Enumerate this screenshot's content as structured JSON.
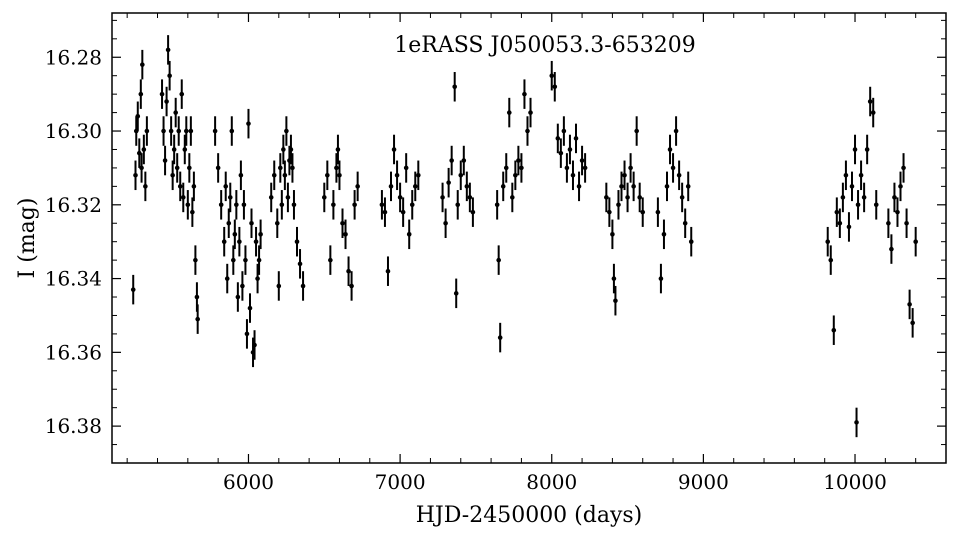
{
  "chart_data": {
    "type": "scatter",
    "title": "1eRASS J050053.3-653209",
    "xlabel": "HJD-2450000 (days)",
    "ylabel": "I (mag)",
    "xlim": [
      5100,
      10600
    ],
    "ylim": [
      16.39,
      16.268
    ],
    "y_inverted": true,
    "grid": false,
    "legend": "none",
    "marker_color": "#000000",
    "x_ticks": [
      6000,
      7000,
      8000,
      9000,
      10000
    ],
    "y_ticks": [
      16.28,
      16.3,
      16.32,
      16.34,
      16.36,
      16.38
    ],
    "x_tick_labels": [
      "6000",
      "7000",
      "8000",
      "9000",
      "10000"
    ],
    "y_tick_labels": [
      "16.28",
      "16.30",
      "16.32",
      "16.34",
      "16.36",
      "16.38"
    ],
    "error_bar_mag": 0.004,
    "points": [
      [
        5240,
        16.343
      ],
      [
        5255,
        16.312
      ],
      [
        5260,
        16.3
      ],
      [
        5270,
        16.296
      ],
      [
        5280,
        16.306
      ],
      [
        5290,
        16.29
      ],
      [
        5295,
        16.31
      ],
      [
        5300,
        16.282
      ],
      [
        5310,
        16.305
      ],
      [
        5320,
        16.315
      ],
      [
        5330,
        16.3
      ],
      [
        5430,
        16.29
      ],
      [
        5440,
        16.3
      ],
      [
        5450,
        16.308
      ],
      [
        5460,
        16.292
      ],
      [
        5470,
        16.278
      ],
      [
        5480,
        16.285
      ],
      [
        5490,
        16.3
      ],
      [
        5500,
        16.312
      ],
      [
        5510,
        16.305
      ],
      [
        5520,
        16.295
      ],
      [
        5530,
        16.31
      ],
      [
        5540,
        16.3
      ],
      [
        5550,
        16.315
      ],
      [
        5560,
        16.29
      ],
      [
        5570,
        16.318
      ],
      [
        5580,
        16.305
      ],
      [
        5590,
        16.3
      ],
      [
        5600,
        16.32
      ],
      [
        5610,
        16.31
      ],
      [
        5620,
        16.3
      ],
      [
        5630,
        16.322
      ],
      [
        5640,
        16.315
      ],
      [
        5650,
        16.335
      ],
      [
        5660,
        16.345
      ],
      [
        5665,
        16.351
      ],
      [
        5780,
        16.3
      ],
      [
        5800,
        16.31
      ],
      [
        5820,
        16.32
      ],
      [
        5840,
        16.33
      ],
      [
        5850,
        16.315
      ],
      [
        5860,
        16.34
      ],
      [
        5870,
        16.325
      ],
      [
        5880,
        16.318
      ],
      [
        5890,
        16.3
      ],
      [
        5900,
        16.335
      ],
      [
        5910,
        16.328
      ],
      [
        5920,
        16.32
      ],
      [
        5930,
        16.345
      ],
      [
        5940,
        16.33
      ],
      [
        5950,
        16.312
      ],
      [
        5960,
        16.342
      ],
      [
        5970,
        16.32
      ],
      [
        5980,
        16.335
      ],
      [
        5990,
        16.355
      ],
      [
        6000,
        16.298
      ],
      [
        6010,
        16.348
      ],
      [
        6020,
        16.325
      ],
      [
        6030,
        16.36
      ],
      [
        6040,
        16.358
      ],
      [
        6050,
        16.33
      ],
      [
        6060,
        16.34
      ],
      [
        6070,
        16.335
      ],
      [
        6080,
        16.328
      ],
      [
        6150,
        16.318
      ],
      [
        6170,
        16.312
      ],
      [
        6190,
        16.325
      ],
      [
        6200,
        16.342
      ],
      [
        6210,
        16.31
      ],
      [
        6220,
        16.32
      ],
      [
        6230,
        16.305
      ],
      [
        6240,
        16.312
      ],
      [
        6250,
        16.3
      ],
      [
        6260,
        16.318
      ],
      [
        6270,
        16.308
      ],
      [
        6280,
        16.305
      ],
      [
        6290,
        16.31
      ],
      [
        6300,
        16.32
      ],
      [
        6320,
        16.33
      ],
      [
        6340,
        16.336
      ],
      [
        6360,
        16.342
      ],
      [
        6500,
        16.318
      ],
      [
        6520,
        16.312
      ],
      [
        6540,
        16.335
      ],
      [
        6560,
        16.32
      ],
      [
        6580,
        16.31
      ],
      [
        6590,
        16.305
      ],
      [
        6600,
        16.312
      ],
      [
        6620,
        16.325
      ],
      [
        6640,
        16.328
      ],
      [
        6660,
        16.338
      ],
      [
        6680,
        16.342
      ],
      [
        6700,
        16.32
      ],
      [
        6720,
        16.315
      ],
      [
        6880,
        16.32
      ],
      [
        6900,
        16.322
      ],
      [
        6920,
        16.338
      ],
      [
        6940,
        16.315
      ],
      [
        6960,
        16.305
      ],
      [
        6980,
        16.312
      ],
      [
        7000,
        16.318
      ],
      [
        7020,
        16.322
      ],
      [
        7040,
        16.31
      ],
      [
        7060,
        16.328
      ],
      [
        7080,
        16.32
      ],
      [
        7100,
        16.315
      ],
      [
        7120,
        16.312
      ],
      [
        7280,
        16.318
      ],
      [
        7300,
        16.325
      ],
      [
        7320,
        16.314
      ],
      [
        7340,
        16.308
      ],
      [
        7360,
        16.288
      ],
      [
        7370,
        16.344
      ],
      [
        7380,
        16.32
      ],
      [
        7400,
        16.312
      ],
      [
        7420,
        16.308
      ],
      [
        7440,
        16.315
      ],
      [
        7460,
        16.318
      ],
      [
        7480,
        16.322
      ],
      [
        7640,
        16.32
      ],
      [
        7650,
        16.335
      ],
      [
        7660,
        16.356
      ],
      [
        7680,
        16.315
      ],
      [
        7700,
        16.31
      ],
      [
        7720,
        16.295
      ],
      [
        7740,
        16.318
      ],
      [
        7760,
        16.312
      ],
      [
        7780,
        16.308
      ],
      [
        7800,
        16.31
      ],
      [
        7820,
        16.29
      ],
      [
        7840,
        16.3
      ],
      [
        7860,
        16.295
      ],
      [
        8000,
        16.285
      ],
      [
        8020,
        16.288
      ],
      [
        8040,
        16.302
      ],
      [
        8060,
        16.306
      ],
      [
        8080,
        16.3
      ],
      [
        8100,
        16.31
      ],
      [
        8120,
        16.305
      ],
      [
        8140,
        16.312
      ],
      [
        8160,
        16.302
      ],
      [
        8180,
        16.315
      ],
      [
        8200,
        16.308
      ],
      [
        8220,
        16.31
      ],
      [
        8360,
        16.318
      ],
      [
        8380,
        16.322
      ],
      [
        8400,
        16.328
      ],
      [
        8410,
        16.34
      ],
      [
        8420,
        16.346
      ],
      [
        8440,
        16.32
      ],
      [
        8460,
        16.315
      ],
      [
        8480,
        16.312
      ],
      [
        8500,
        16.318
      ],
      [
        8520,
        16.31
      ],
      [
        8540,
        16.315
      ],
      [
        8560,
        16.3
      ],
      [
        8580,
        16.318
      ],
      [
        8600,
        16.322
      ],
      [
        8700,
        16.322
      ],
      [
        8720,
        16.34
      ],
      [
        8740,
        16.328
      ],
      [
        8760,
        16.315
      ],
      [
        8780,
        16.305
      ],
      [
        8800,
        16.31
      ],
      [
        8820,
        16.3
      ],
      [
        8840,
        16.312
      ],
      [
        8860,
        16.318
      ],
      [
        8880,
        16.325
      ],
      [
        8900,
        16.315
      ],
      [
        8920,
        16.33
      ],
      [
        9820,
        16.33
      ],
      [
        9840,
        16.335
      ],
      [
        9860,
        16.354
      ],
      [
        9880,
        16.322
      ],
      [
        9900,
        16.325
      ],
      [
        9920,
        16.318
      ],
      [
        9940,
        16.312
      ],
      [
        9960,
        16.326
      ],
      [
        9980,
        16.315
      ],
      [
        10000,
        16.305
      ],
      [
        10020,
        16.32
      ],
      [
        10040,
        16.312
      ],
      [
        10060,
        16.318
      ],
      [
        10080,
        16.305
      ],
      [
        10100,
        16.292
      ],
      [
        10120,
        16.295
      ],
      [
        10140,
        16.32
      ],
      [
        10010,
        16.379
      ],
      [
        10220,
        16.325
      ],
      [
        10240,
        16.332
      ],
      [
        10260,
        16.318
      ],
      [
        10280,
        16.322
      ],
      [
        10300,
        16.315
      ],
      [
        10320,
        16.31
      ],
      [
        10340,
        16.325
      ],
      [
        10360,
        16.347
      ],
      [
        10380,
        16.352
      ],
      [
        10400,
        16.33
      ]
    ]
  }
}
